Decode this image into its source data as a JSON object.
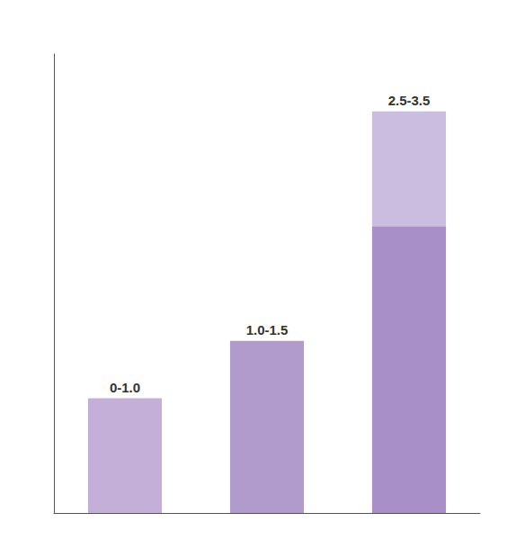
{
  "chart_data": {
    "type": "bar",
    "stacked": true,
    "categories": [
      "0-1.0",
      "1.0-1.5",
      "2.5-3.5"
    ],
    "series": [
      {
        "colors": [
          "#c4afd8",
          "#b09bcc",
          "#a98fc7"
        ],
        "values": [
          1.0,
          1.5,
          2.5
        ]
      },
      {
        "color": "#cbbde0",
        "values": [
          0.0,
          0.0,
          1.0
        ]
      }
    ],
    "ylim": [
      0,
      4
    ],
    "grid": false,
    "tick_labels": false
  }
}
